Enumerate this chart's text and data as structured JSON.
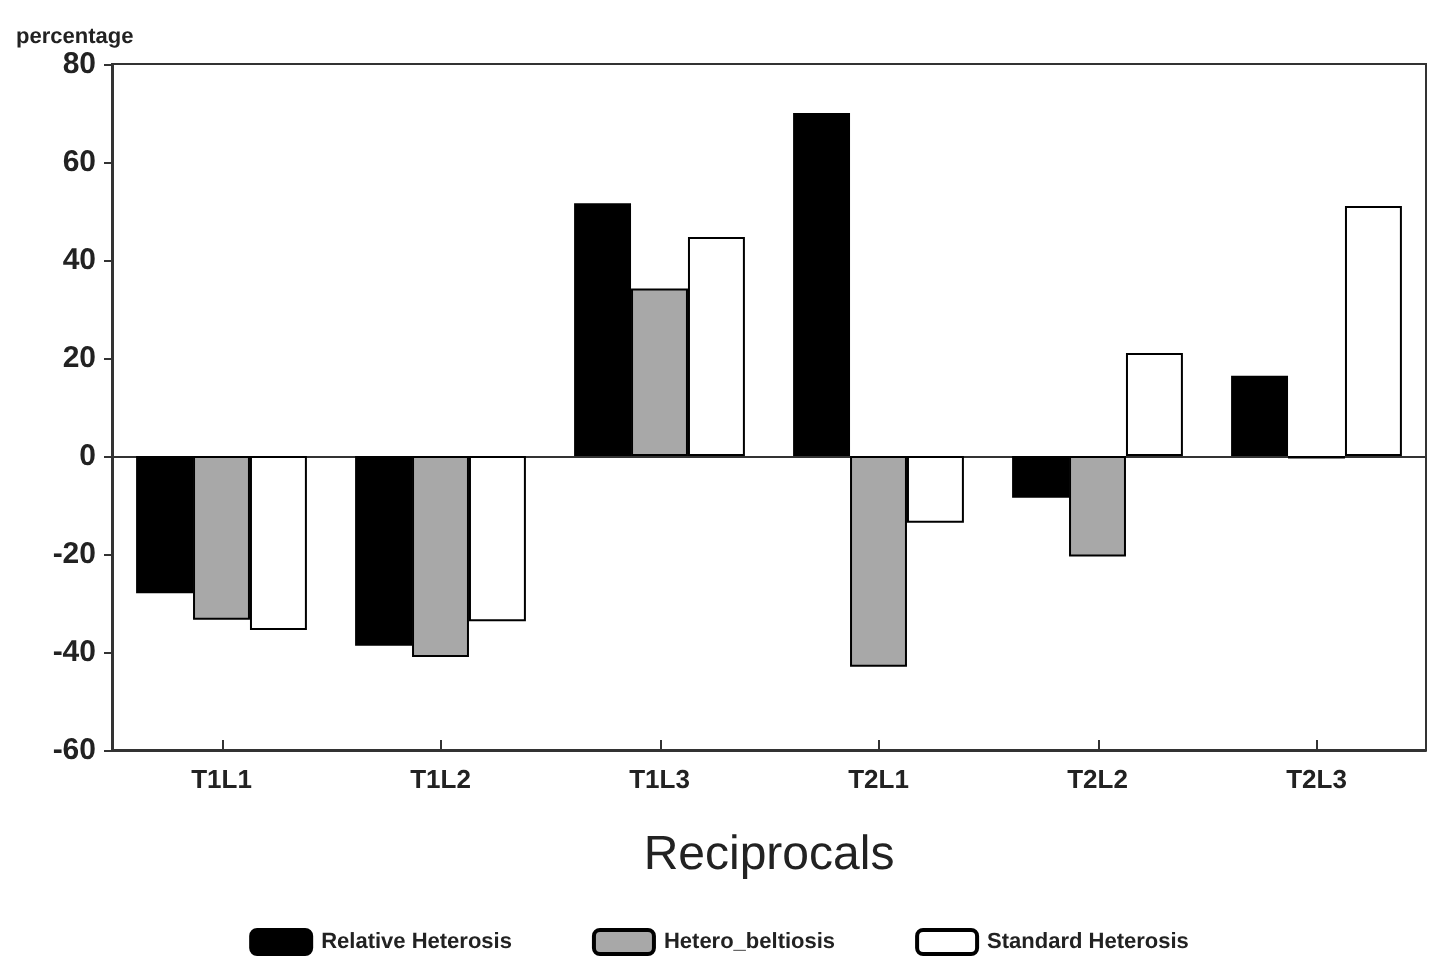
{
  "chart_data": {
    "type": "bar",
    "xlabel": "Reciprocals",
    "ylabel": "percentage",
    "categories": [
      "T1L1",
      "T1L2",
      "T1L3",
      "T2L1",
      "T2L2",
      "T2L3"
    ],
    "series": [
      {
        "name": "Relative Heterosis",
        "color": "#000000",
        "values": [
          -28,
          -38.7,
          51.6,
          70,
          -8.5,
          16.4
        ]
      },
      {
        "name": "Hetero_beltiosis",
        "color": "#a8a8a8",
        "values": [
          -33.4,
          -41,
          34.2,
          -43,
          -20.5,
          -0.5
        ]
      },
      {
        "name": "Standard Heterosis",
        "color": "#ffffff",
        "values": [
          -35.5,
          -33.7,
          44.7,
          -13.6,
          21,
          51
        ]
      }
    ],
    "ylim": [
      -60,
      80
    ],
    "yticks": [
      -60,
      -40,
      -20,
      0,
      20,
      40,
      60,
      80
    ],
    "legend": "bottom"
  }
}
